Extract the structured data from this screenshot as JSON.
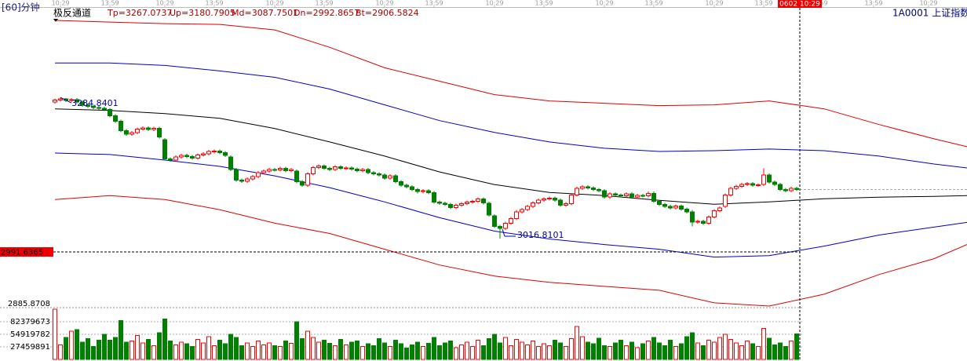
{
  "header": {
    "period": "[60]分钟",
    "indicator": "极反通道",
    "symbol": "1A0001  上证指数"
  },
  "cursor": {
    "time": "0602 10:29",
    "price": 2991.6365
  },
  "chart_data": [
    {
      "type": "candlestick",
      "up_color": "#ff0000",
      "down_color": "#008000",
      "readout_color": "#b00000",
      "xlim": [
        -0.3,
        166
      ],
      "xticks": [
        {
          "value": 1,
          "label": "10:29"
        },
        {
          "value": 10,
          "label": "13:59"
        },
        {
          "value": 20,
          "label": "10:29"
        },
        {
          "value": 29,
          "label": "13:59"
        },
        {
          "value": 40,
          "label": "10:29"
        },
        {
          "value": 49,
          "label": "13:59"
        },
        {
          "value": 60,
          "label": "10:29"
        },
        {
          "value": 69,
          "label": "13:59"
        },
        {
          "value": 80,
          "label": "10:29"
        },
        {
          "value": 89,
          "label": "13:59"
        },
        {
          "value": 100,
          "label": "10:29"
        },
        {
          "value": 109,
          "label": "13:59"
        },
        {
          "value": 120,
          "label": "10:29"
        },
        {
          "value": 129,
          "label": "13:59"
        },
        {
          "value": 139,
          "label": "13:59"
        },
        {
          "value": 149,
          "label": "13:59"
        },
        {
          "value": 159,
          "label": "10:29"
        }
      ],
      "ylim": [
        2885.8708,
        3455
      ],
      "yticks": [
        2885.8708
      ],
      "open": [
        3276,
        3280,
        3282,
        3279,
        3281,
        3276,
        3270,
        3268,
        3266,
        3264,
        3262,
        3250,
        3240,
        3222,
        3215,
        3218,
        3225,
        3227,
        3224,
        3226,
        3205,
        3168,
        3166,
        3172,
        3175,
        3173,
        3170,
        3176,
        3178,
        3182,
        3183,
        3180,
        3172,
        3148,
        3128,
        3126,
        3130,
        3135,
        3142,
        3145,
        3148,
        3147,
        3150,
        3146,
        3145,
        3125,
        3118,
        3140,
        3152,
        3155,
        3150,
        3148,
        3153,
        3150,
        3151,
        3149,
        3146,
        3148,
        3142,
        3140,
        3138,
        3132,
        3136,
        3125,
        3118,
        3115,
        3110,
        3106,
        3108,
        3104,
        3086,
        3084,
        3082,
        3076,
        3080,
        3083,
        3086,
        3088,
        3092,
        3084,
        3060,
        3040,
        3036,
        3046,
        3055,
        3068,
        3072,
        3078,
        3085,
        3090,
        3092,
        3094,
        3090,
        3080,
        3083,
        3100,
        3112,
        3115,
        3113,
        3110,
        3108,
        3096,
        3102,
        3100,
        3098,
        3102,
        3096,
        3099,
        3098,
        3103,
        3088,
        3082,
        3078,
        3075,
        3079,
        3073,
        3068,
        3048,
        3050,
        3046,
        3058,
        3070,
        3078,
        3100,
        3112,
        3116,
        3120,
        3121,
        3118,
        3120,
        3138,
        3124,
        3120,
        3110,
        3108,
        3112
      ],
      "high": [
        3283,
        3284.8401,
        3284,
        3284,
        3284,
        3279,
        3273,
        3271,
        3269,
        3267,
        3265,
        3253,
        3243,
        3225,
        3221,
        3228,
        3230,
        3230,
        3229,
        3229,
        3208,
        3171,
        3175,
        3178,
        3178,
        3176,
        3179,
        3181,
        3185,
        3186,
        3186,
        3183,
        3175,
        3151,
        3131,
        3133,
        3138,
        3145,
        3148,
        3151,
        3151,
        3153,
        3153,
        3151,
        3148,
        3128,
        3143,
        3155,
        3158,
        3158,
        3153,
        3156,
        3156,
        3154,
        3154,
        3152,
        3151,
        3151,
        3145,
        3143,
        3141,
        3139,
        3139,
        3128,
        3121,
        3118,
        3113,
        3111,
        3111,
        3107,
        3089,
        3087,
        3085,
        3083,
        3086,
        3089,
        3091,
        3095,
        3095,
        3087,
        3063,
        3043,
        3049,
        3058,
        3071,
        3075,
        3081,
        3088,
        3093,
        3095,
        3097,
        3097,
        3093,
        3086,
        3103,
        3115,
        3118,
        3118,
        3116,
        3113,
        3111,
        3105,
        3105,
        3103,
        3105,
        3105,
        3102,
        3102,
        3106,
        3106,
        3091,
        3085,
        3081,
        3082,
        3082,
        3076,
        3071,
        3053,
        3053,
        3061,
        3073,
        3078,
        3103,
        3115,
        3119,
        3123,
        3124,
        3124,
        3122,
        3150,
        3141,
        3127,
        3123,
        3113,
        3115,
        3115
      ],
      "low": [
        3273,
        3277,
        3276,
        3276,
        3273,
        3267,
        3265,
        3263,
        3261,
        3259,
        3247,
        3237,
        3219,
        3212,
        3212,
        3215,
        3222,
        3221,
        3221,
        3207,
        3165,
        3163,
        3163,
        3169,
        3170,
        3167,
        3167,
        3173,
        3175,
        3179,
        3177,
        3172,
        3145,
        3125,
        3123,
        3123,
        3127,
        3132,
        3139,
        3142,
        3144,
        3144,
        3143,
        3143,
        3122,
        3115,
        3115,
        3137,
        3149,
        3147,
        3145,
        3145,
        3147,
        3147,
        3146,
        3143,
        3143,
        3139,
        3137,
        3135,
        3129,
        3129,
        3122,
        3115,
        3112,
        3107,
        3103,
        3103,
        3101,
        3083,
        3081,
        3079,
        3073,
        3073,
        3077,
        3080,
        3083,
        3085,
        3082,
        3059,
        3037,
        3016.8101,
        3033,
        3043,
        3052,
        3065,
        3069,
        3075,
        3082,
        3087,
        3089,
        3087,
        3077,
        3077,
        3080,
        3097,
        3109,
        3110,
        3107,
        3105,
        3093,
        3093,
        3097,
        3095,
        3095,
        3093,
        3093,
        3095,
        3095,
        3085,
        3079,
        3075,
        3072,
        3072,
        3070,
        3065,
        3040,
        3045,
        3043,
        3043,
        3055,
        3067,
        3075,
        3097,
        3109,
        3113,
        3117,
        3115,
        3115,
        3117,
        3121,
        3117,
        3107,
        3105,
        3105,
        3107
      ],
      "close": [
        3280,
        3282,
        3279,
        3281,
        3276,
        3270,
        3268,
        3266,
        3264,
        3262,
        3250,
        3240,
        3222,
        3215,
        3218,
        3225,
        3227,
        3224,
        3226,
        3210,
        3168,
        3166,
        3172,
        3175,
        3173,
        3170,
        3176,
        3178,
        3182,
        3183,
        3180,
        3175,
        3148,
        3128,
        3126,
        3130,
        3135,
        3142,
        3145,
        3148,
        3147,
        3150,
        3146,
        3148,
        3125,
        3118,
        3140,
        3152,
        3155,
        3150,
        3148,
        3153,
        3150,
        3151,
        3149,
        3146,
        3148,
        3142,
        3140,
        3138,
        3132,
        3136,
        3125,
        3118,
        3115,
        3110,
        3106,
        3108,
        3104,
        3086,
        3084,
        3082,
        3076,
        3080,
        3083,
        3086,
        3088,
        3092,
        3085,
        3062,
        3040,
        3036,
        3046,
        3055,
        3068,
        3072,
        3078,
        3085,
        3090,
        3092,
        3094,
        3090,
        3080,
        3083,
        3100,
        3112,
        3115,
        3113,
        3110,
        3108,
        3096,
        3102,
        3100,
        3098,
        3102,
        3096,
        3099,
        3098,
        3103,
        3088,
        3082,
        3078,
        3075,
        3079,
        3073,
        3068,
        3048,
        3050,
        3046,
        3058,
        3070,
        3075,
        3100,
        3112,
        3116,
        3120,
        3121,
        3118,
        3119,
        3138,
        3124,
        3120,
        3110,
        3108,
        3112,
        3110
      ],
      "band_x": [
        0,
        10,
        20,
        30,
        40,
        50,
        60,
        70,
        80,
        90,
        100,
        110,
        120,
        130,
        140,
        150,
        160,
        166
      ],
      "bands": [
        {
          "label": "Tp=3267.0737",
          "color": "#e00000",
          "values": [
            3431.1,
            3428.0,
            3425.1,
            3423.6,
            3413.1,
            3380.1,
            3341.2,
            3315.7,
            3290.2,
            3278.3,
            3273.8,
            3269.3,
            3270.8,
            3278.3,
            3263.3,
            3233.4,
            3206.4,
            3191.4
          ]
        },
        {
          "label": "Up=3180.7905",
          "color": "#0000c8",
          "values": [
            3350.2,
            3350.2,
            3345.7,
            3335.2,
            3323.2,
            3300.8,
            3270.8,
            3240.9,
            3218.4,
            3200.4,
            3188.4,
            3182.4,
            3183.9,
            3186.9,
            3183.9,
            3173.5,
            3158.5,
            3151.0
          ]
        },
        {
          "label": "Md=3087.7501",
          "color": "#000000",
          "values": [
            3263.3,
            3260.3,
            3254.3,
            3245.3,
            3225.9,
            3200.4,
            3173.5,
            3143.5,
            3119.5,
            3104.6,
            3098.6,
            3089.6,
            3082.1,
            3086.6,
            3092.6,
            3095.6,
            3097.1,
            3098.6
          ]
        },
        {
          "label": "Dn=2992.8657",
          "color": "#0000c8",
          "values": [
            3179.4,
            3176.5,
            3166.0,
            3154.0,
            3136.0,
            3113.6,
            3086.6,
            3056.6,
            3031.2,
            3016.2,
            3005.7,
            2996.7,
            2981.8,
            2984.7,
            3002.7,
            3023.7,
            3038.7,
            3047.7
          ]
        },
        {
          "label": "Bt=2906.5824",
          "color": "#e00000",
          "values": [
            3091.1,
            3098.6,
            3091.1,
            3071.6,
            3046.2,
            3026.7,
            2996.7,
            2966.8,
            2945.8,
            2933.8,
            2926.3,
            2918.8,
            2894.9,
            2888.9,
            2911.4,
            2948.8,
            2978.8,
            3005.7
          ]
        }
      ]
    },
    {
      "type": "bar",
      "ylim": [
        0,
        113000000
      ],
      "yticks": [
        27459891,
        54919782,
        82379673
      ],
      "values": [
        110000000,
        32000000,
        48000000,
        62000000,
        65000000,
        38000000,
        45000000,
        28000000,
        42000000,
        55000000,
        42000000,
        48000000,
        85000000,
        38000000,
        40000000,
        52000000,
        36000000,
        44000000,
        30000000,
        58000000,
        88000000,
        40000000,
        32000000,
        38000000,
        34000000,
        28000000,
        44000000,
        36000000,
        50000000,
        30000000,
        42000000,
        34000000,
        55000000,
        48000000,
        30000000,
        36000000,
        28000000,
        40000000,
        32000000,
        36000000,
        30000000,
        28000000,
        40000000,
        35000000,
        82000000,
        45000000,
        62000000,
        48000000,
        38000000,
        42000000,
        35000000,
        30000000,
        44000000,
        32000000,
        38000000,
        40000000,
        28000000,
        34000000,
        30000000,
        45000000,
        36000000,
        28000000,
        42000000,
        34000000,
        25000000,
        32000000,
        38000000,
        28000000,
        35000000,
        48000000,
        30000000,
        36000000,
        40000000,
        26000000,
        32000000,
        38000000,
        28000000,
        42000000,
        30000000,
        45000000,
        55000000,
        36000000,
        48000000,
        30000000,
        44000000,
        38000000,
        32000000,
        40000000,
        28000000,
        34000000,
        30000000,
        42000000,
        36000000,
        28000000,
        45000000,
        72000000,
        50000000,
        38000000,
        34000000,
        46000000,
        30000000,
        28000000,
        36000000,
        42000000,
        30000000,
        38000000,
        26000000,
        34000000,
        40000000,
        48000000,
        36000000,
        30000000,
        42000000,
        28000000,
        34000000,
        50000000,
        58000000,
        36000000,
        30000000,
        42000000,
        38000000,
        48000000,
        55000000,
        44000000,
        36000000,
        30000000,
        40000000,
        34000000,
        28000000,
        68000000,
        46000000,
        32000000,
        36000000,
        28000000,
        40000000,
        56000000
      ]
    }
  ]
}
